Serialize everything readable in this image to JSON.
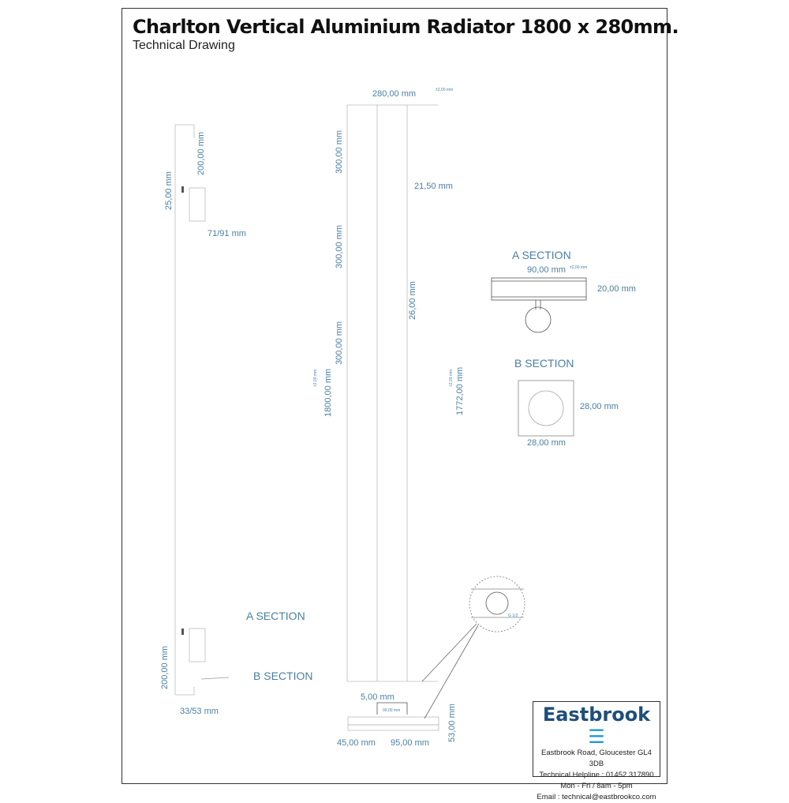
{
  "header": {
    "title": "Charlton Vertical Aluminium Radiator 1800 x 280mm.",
    "subtitle": "Technical Drawing"
  },
  "dimensions": {
    "width": "280,00 mm",
    "tolerance": "±2,00 mm",
    "seg1": "300,00 mm",
    "seg2": "300,00 mm",
    "seg3": "300,00 mm",
    "gap": "21,50 mm",
    "tube": "26,00 mm",
    "height": "1800,00 mm",
    "centres": "1772,00 mm",
    "bracket_h": "200,00 mm",
    "bracket_off": "25,00 mm",
    "projection": "71/91 mm",
    "bottom_h": "200,00 mm",
    "bottom_proj": "33/53 mm",
    "a_w": "90,00 mm",
    "a_h": "20,00 mm",
    "b_w": "28,00 mm",
    "b_h": "28,00 mm",
    "b5": "5,00 mm",
    "b45": "45,00 mm",
    "b95": "95,00 mm",
    "b53": "53,00 mm",
    "b90": "90,00 mm",
    "thread": "G 1/2"
  },
  "sections": {
    "a": "A SECTION",
    "b": "B SECTION"
  },
  "company": {
    "name": "Eastbrook",
    "address": "Eastbrook Road, Gloucester GL4 3DB",
    "helpline": "Technical Helpline : 01452 317890",
    "hours": "Mon - Fri / 8am - 5pm",
    "email": "Email : technical@eastbrookco.com",
    "brand_color": "#1f4e79",
    "logo_color": "#1e9ad6"
  },
  "colors": {
    "dimension": "#4a7fa3"
  }
}
